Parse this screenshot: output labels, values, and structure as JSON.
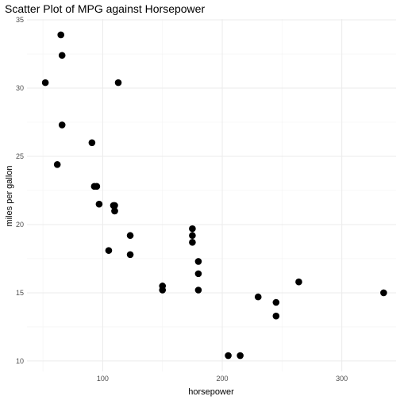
{
  "chart_data": {
    "type": "scatter",
    "title": "Scatter Plot of MPG against Horsepower",
    "xlabel": "horsepower",
    "ylabel": "miles per gallon",
    "xlim": [
      36.65,
      345.35
    ],
    "ylim": [
      9.24,
      35.06
    ],
    "xticks": [
      100,
      200,
      300
    ],
    "yticks": [
      10,
      15,
      20,
      25,
      30,
      35
    ],
    "grid": true,
    "points": [
      {
        "x": 110,
        "y": 21.0
      },
      {
        "x": 110,
        "y": 21.0
      },
      {
        "x": 93,
        "y": 22.8
      },
      {
        "x": 110,
        "y": 21.4
      },
      {
        "x": 175,
        "y": 18.7
      },
      {
        "x": 105,
        "y": 18.1
      },
      {
        "x": 245,
        "y": 14.3
      },
      {
        "x": 62,
        "y": 24.4
      },
      {
        "x": 95,
        "y": 22.8
      },
      {
        "x": 123,
        "y": 19.2
      },
      {
        "x": 123,
        "y": 17.8
      },
      {
        "x": 180,
        "y": 16.4
      },
      {
        "x": 180,
        "y": 17.3
      },
      {
        "x": 180,
        "y": 15.2
      },
      {
        "x": 205,
        "y": 10.4
      },
      {
        "x": 215,
        "y": 10.4
      },
      {
        "x": 230,
        "y": 14.7
      },
      {
        "x": 66,
        "y": 32.4
      },
      {
        "x": 52,
        "y": 30.4
      },
      {
        "x": 65,
        "y": 33.9
      },
      {
        "x": 97,
        "y": 21.5
      },
      {
        "x": 150,
        "y": 15.5
      },
      {
        "x": 150,
        "y": 15.2
      },
      {
        "x": 245,
        "y": 13.3
      },
      {
        "x": 175,
        "y": 19.2
      },
      {
        "x": 66,
        "y": 27.3
      },
      {
        "x": 91,
        "y": 26.0
      },
      {
        "x": 113,
        "y": 30.4
      },
      {
        "x": 264,
        "y": 15.8
      },
      {
        "x": 175,
        "y": 19.7
      },
      {
        "x": 335,
        "y": 15.0
      },
      {
        "x": 109,
        "y": 21.4
      }
    ]
  }
}
